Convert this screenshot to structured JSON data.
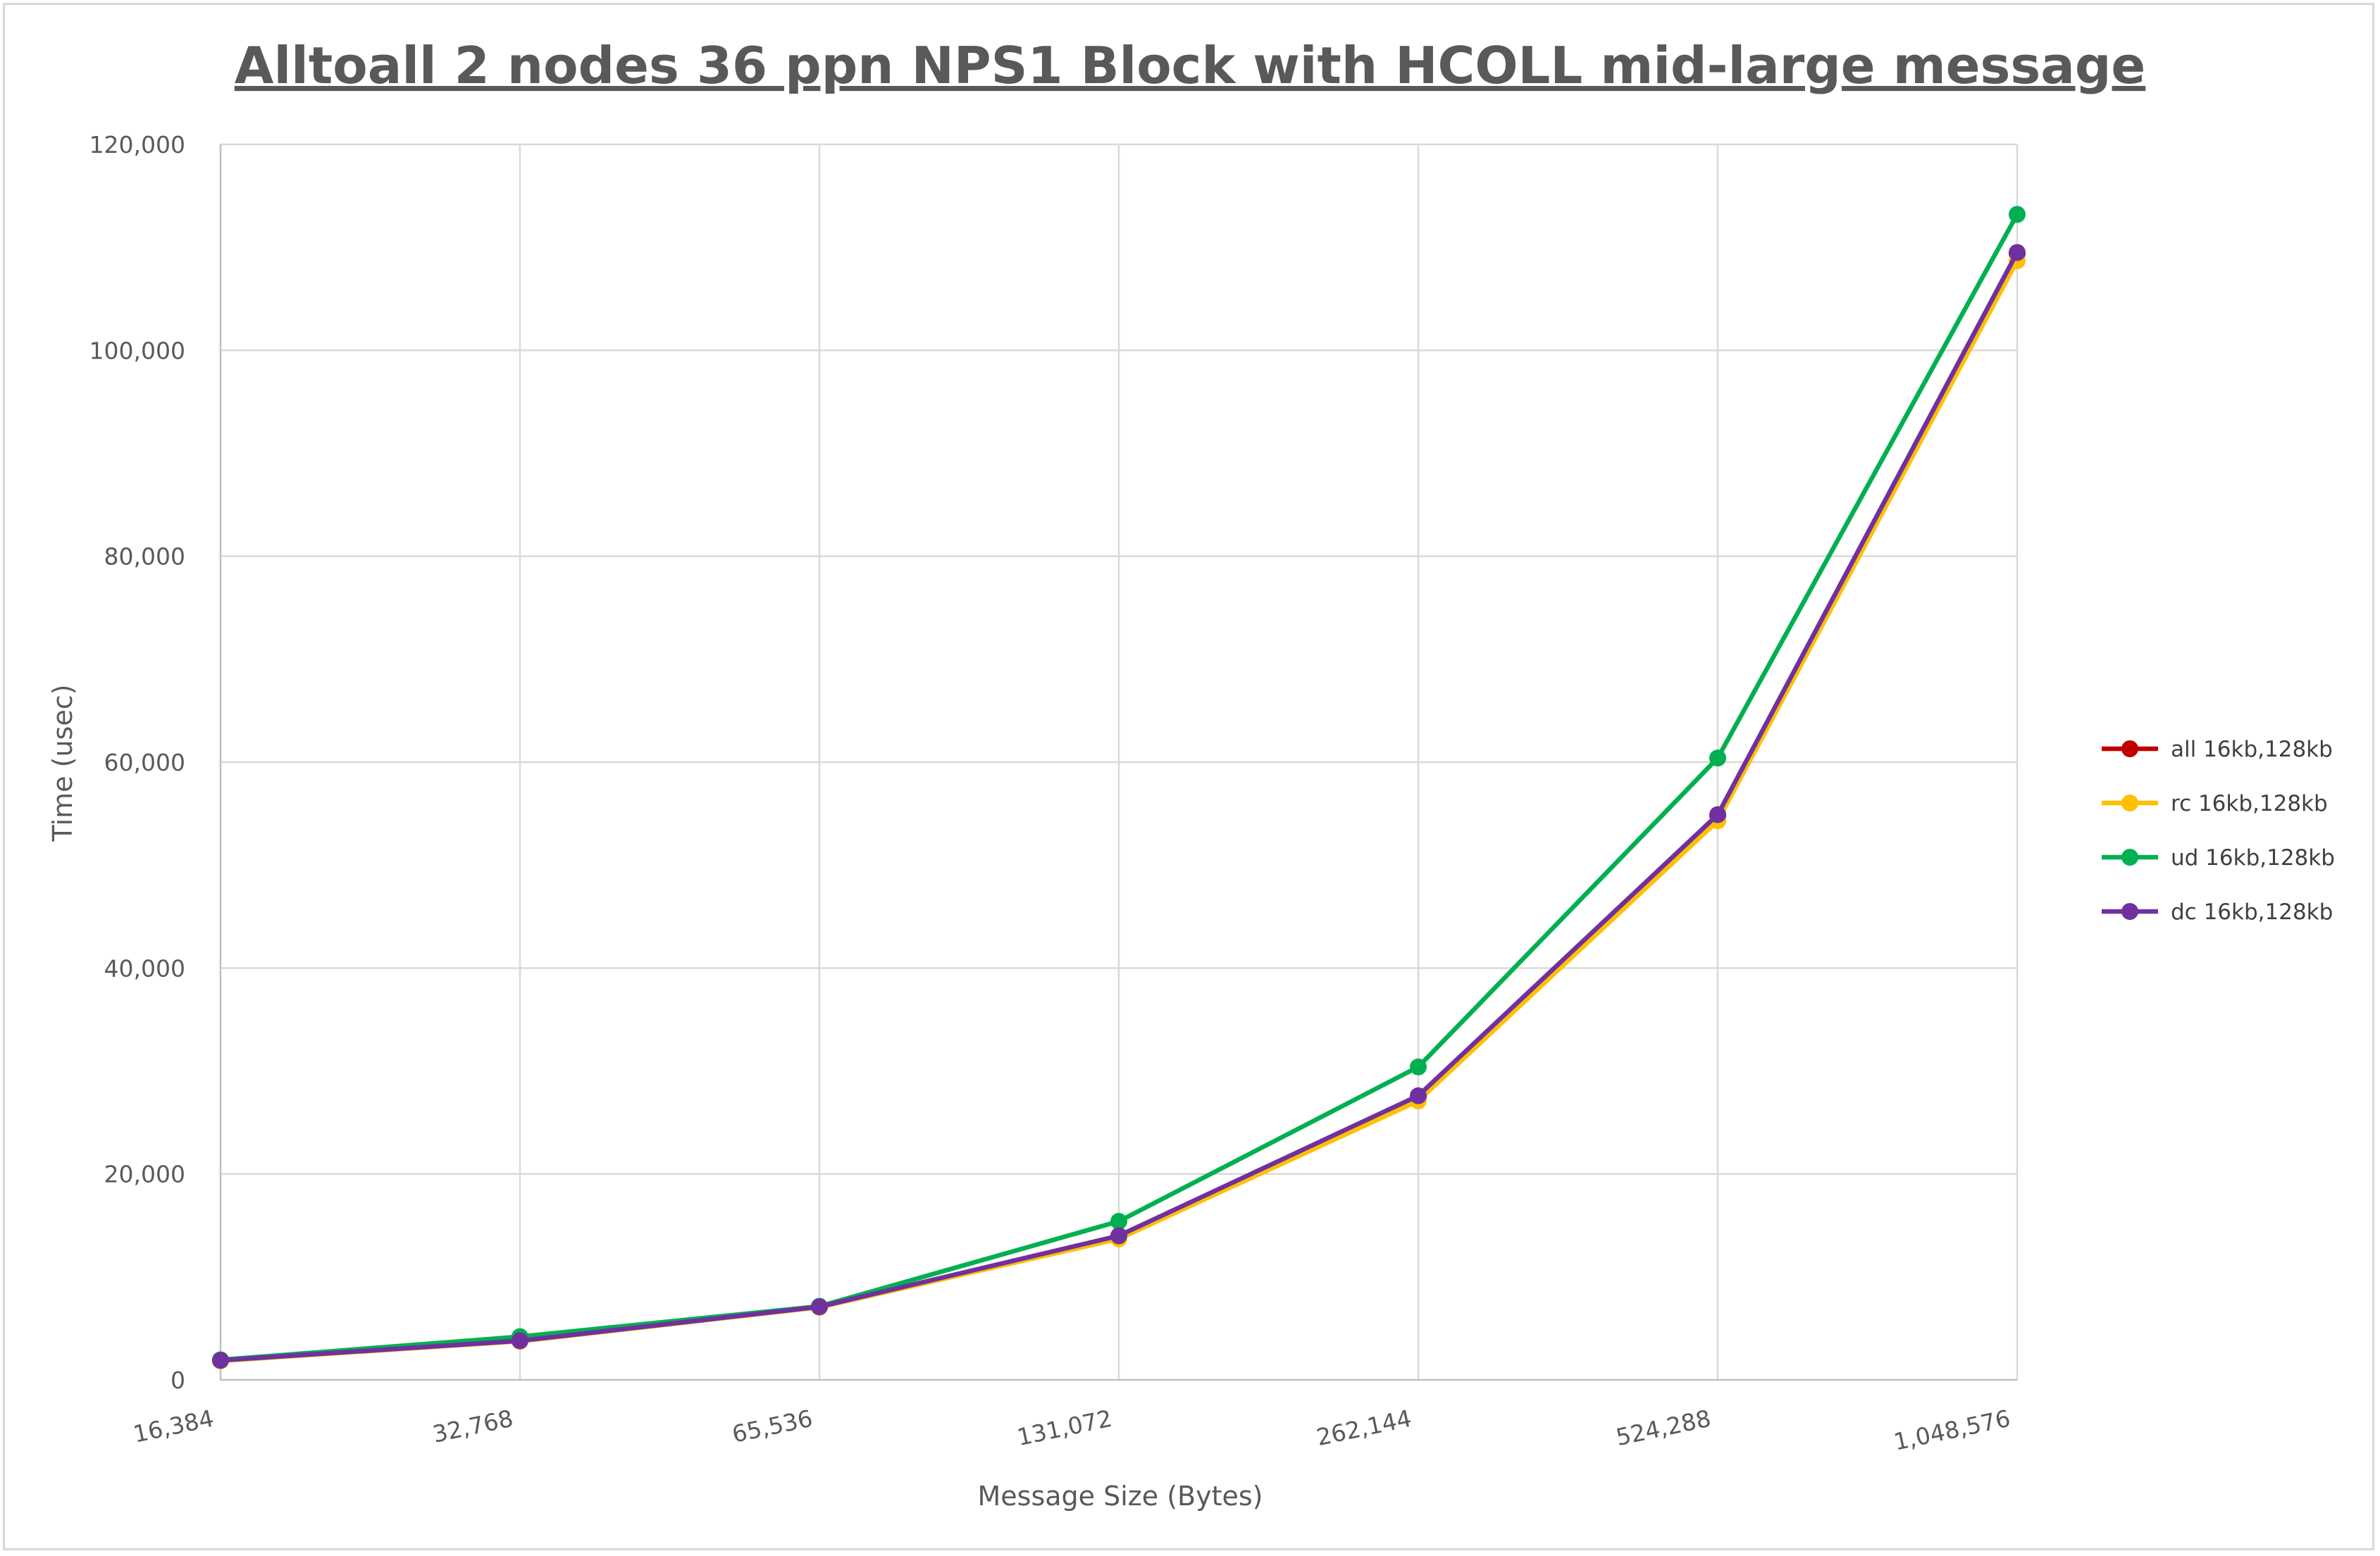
{
  "chart_data": {
    "type": "line",
    "title": "Alltoall 2 nodes 36 ppn NPS1 Block with HCOLL mid-large message",
    "xlabel": "Message Size (Bytes)",
    "ylabel": "Time (usec)",
    "ylim": [
      0,
      120000
    ],
    "y_ticks": [
      0,
      20000,
      40000,
      60000,
      80000,
      100000,
      120000
    ],
    "y_tick_labels": [
      "0",
      "20,000",
      "40,000",
      "60,000",
      "80,000",
      "100,000",
      "120,000"
    ],
    "categories": [
      "16,384",
      "32,768",
      "65,536",
      "131,072",
      "262,144",
      "524,288",
      "1,048,576"
    ],
    "grid": true,
    "legend_position": "right",
    "series": [
      {
        "name": "all 16kb,128kb",
        "color": "#c00000",
        "values": [
          1900,
          3800,
          7100,
          14000,
          27500,
          54800,
          109400
        ]
      },
      {
        "name": "rc 16kb,128kb",
        "color": "#ffc000",
        "values": [
          1850,
          3750,
          7050,
          13700,
          27100,
          54300,
          108700
        ]
      },
      {
        "name": "ud 16kb,128kb",
        "color": "#00b050",
        "values": [
          1950,
          4200,
          7150,
          15400,
          30400,
          60400,
          113200
        ]
      },
      {
        "name": "dc 16kb,128kb",
        "color": "#7030a0",
        "values": [
          1900,
          3800,
          7100,
          14000,
          27600,
          54900,
          109500
        ]
      }
    ]
  }
}
